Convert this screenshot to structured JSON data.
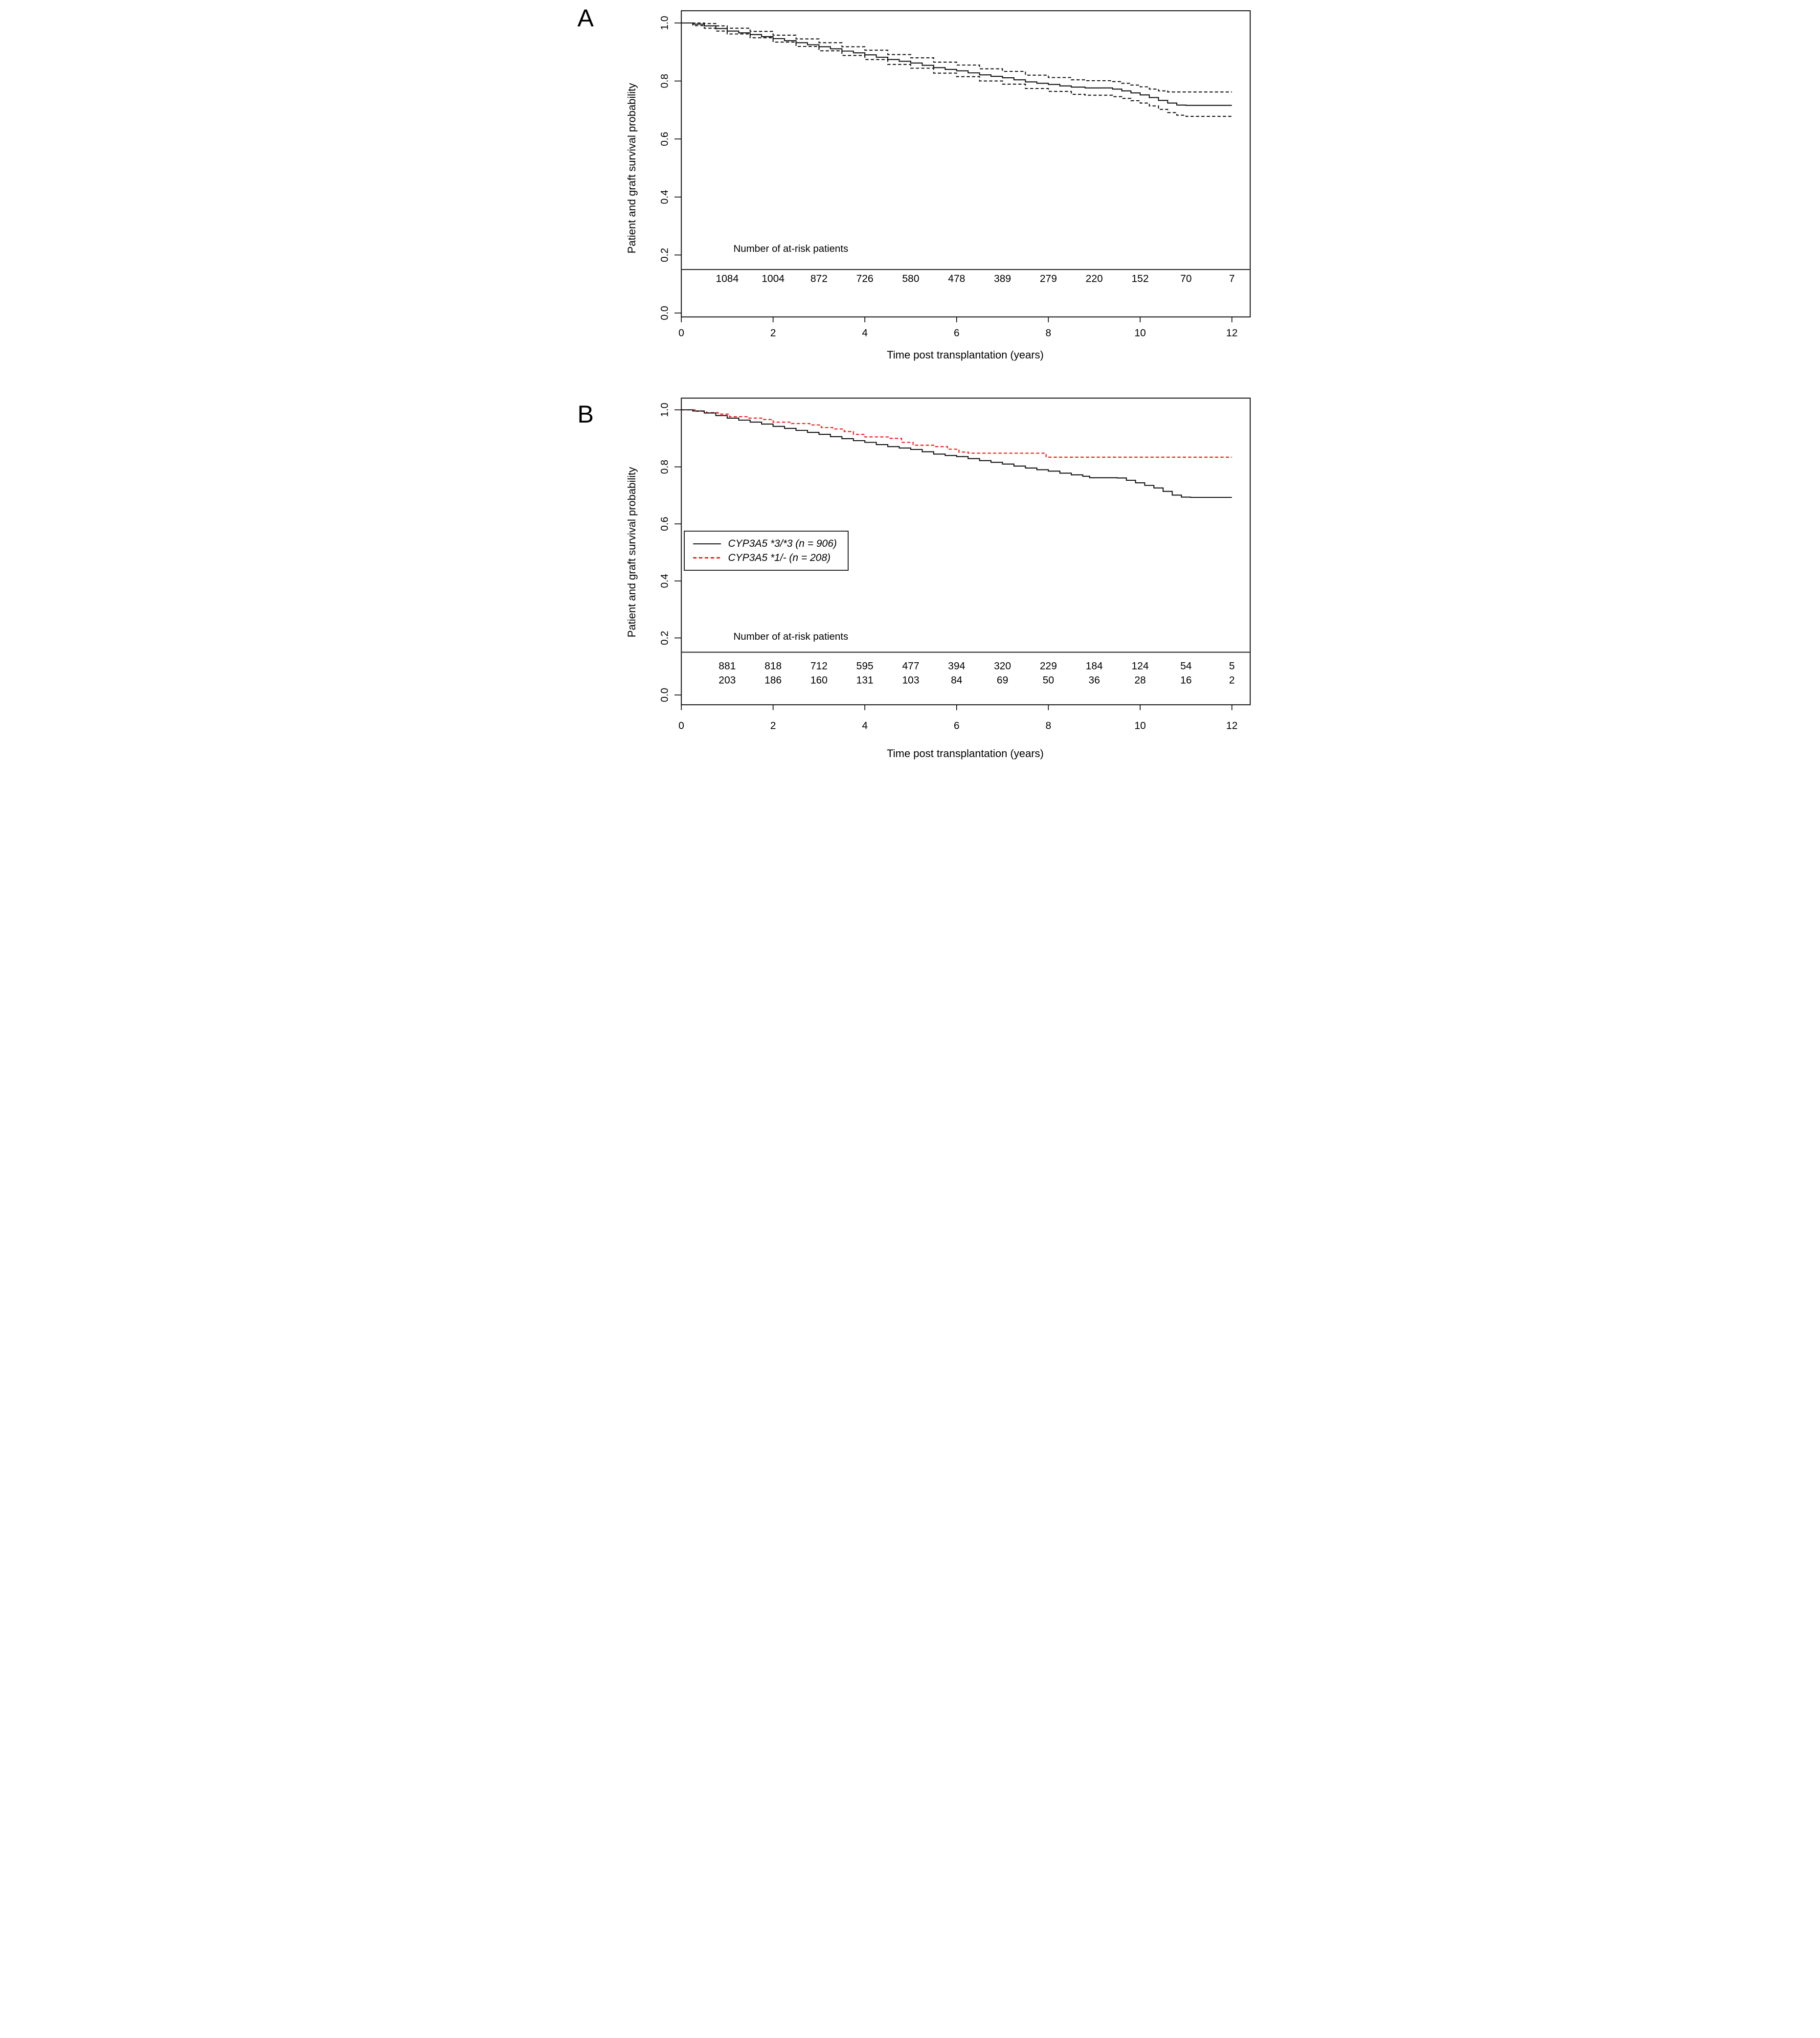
{
  "chart_data": {
    "type": "line",
    "subtype": "kaplan-meier-step",
    "xlabel_shared": "Time post transplantation (years)",
    "panels": [
      {
        "label": "A",
        "xlabel": "Time post transplantation (years)",
        "ylabel": "Patient and graft survival probability",
        "at_risk_title": "Number of at-risk patients",
        "x_ticks": [
          "0",
          "2",
          "4",
          "6",
          "8",
          "10",
          "12"
        ],
        "y_ticks": [
          "1.0",
          "0.8",
          "0.6",
          "0.4",
          "0.2",
          "0.0"
        ],
        "xlim": [
          0,
          12.4
        ],
        "ylim": [
          0,
          1.04
        ],
        "grid": false,
        "series": [
          {
            "name": "overall-survival",
            "line": "solid",
            "color": "#141414",
            "width": 2.1,
            "points": [
              [
                0,
                1.0
              ],
              [
                0.25,
                0.996
              ],
              [
                0.5,
                0.99
              ],
              [
                0.75,
                0.981
              ],
              [
                1,
                0.972
              ],
              [
                1.25,
                0.966
              ],
              [
                1.5,
                0.96
              ],
              [
                1.75,
                0.953
              ],
              [
                2,
                0.946
              ],
              [
                2.25,
                0.939
              ],
              [
                2.5,
                0.932
              ],
              [
                2.75,
                0.925
              ],
              [
                3,
                0.918
              ],
              [
                3.25,
                0.911
              ],
              [
                3.5,
                0.903
              ],
              [
                3.75,
                0.897
              ],
              [
                4,
                0.89
              ],
              [
                4.25,
                0.882
              ],
              [
                4.5,
                0.874
              ],
              [
                4.75,
                0.868
              ],
              [
                5,
                0.862
              ],
              [
                5.25,
                0.854
              ],
              [
                5.5,
                0.846
              ],
              [
                5.75,
                0.84
              ],
              [
                6,
                0.835
              ],
              [
                6.25,
                0.828
              ],
              [
                6.5,
                0.821
              ],
              [
                6.75,
                0.816
              ],
              [
                7,
                0.811
              ],
              [
                7.25,
                0.804
              ],
              [
                7.5,
                0.797
              ],
              [
                7.75,
                0.792
              ],
              [
                8,
                0.788
              ],
              [
                8.25,
                0.783
              ],
              [
                8.5,
                0.779
              ],
              [
                8.8,
                0.776
              ],
              [
                9.4,
                0.772
              ],
              [
                9.6,
                0.766
              ],
              [
                9.8,
                0.759
              ],
              [
                10,
                0.752
              ],
              [
                10.2,
                0.743
              ],
              [
                10.4,
                0.733
              ],
              [
                10.6,
                0.724
              ],
              [
                10.8,
                0.717
              ],
              [
                11,
                0.716
              ],
              [
                12,
                0.716
              ]
            ]
          },
          {
            "name": "upper-95ci",
            "line": "dashed",
            "color": "#141414",
            "width": 2.1,
            "points": [
              [
                0,
                1.0
              ],
              [
                0.25,
                1.0
              ],
              [
                0.5,
                0.998
              ],
              [
                0.75,
                0.99
              ],
              [
                1,
                0.982
              ],
              [
                1.5,
                0.971
              ],
              [
                2,
                0.958
              ],
              [
                2.5,
                0.945
              ],
              [
                3,
                0.932
              ],
              [
                3.5,
                0.918
              ],
              [
                4,
                0.906
              ],
              [
                4.5,
                0.891
              ],
              [
                5,
                0.88
              ],
              [
                5.5,
                0.865
              ],
              [
                6,
                0.855
              ],
              [
                6.5,
                0.842
              ],
              [
                7,
                0.833
              ],
              [
                7.5,
                0.82
              ],
              [
                8,
                0.812
              ],
              [
                8.5,
                0.804
              ],
              [
                8.8,
                0.801
              ],
              [
                9.4,
                0.798
              ],
              [
                9.6,
                0.792
              ],
              [
                9.8,
                0.786
              ],
              [
                10,
                0.78
              ],
              [
                10.2,
                0.772
              ],
              [
                10.4,
                0.766
              ],
              [
                10.6,
                0.762
              ],
              [
                12,
                0.762
              ]
            ]
          },
          {
            "name": "lower-95ci",
            "line": "dashed",
            "color": "#141414",
            "width": 2.1,
            "points": [
              [
                0,
                1.0
              ],
              [
                0.25,
                0.991
              ],
              [
                0.5,
                0.982
              ],
              [
                0.75,
                0.972
              ],
              [
                1,
                0.962
              ],
              [
                1.5,
                0.949
              ],
              [
                2,
                0.934
              ],
              [
                2.5,
                0.919
              ],
              [
                3,
                0.904
              ],
              [
                3.5,
                0.888
              ],
              [
                4,
                0.874
              ],
              [
                4.5,
                0.857
              ],
              [
                5,
                0.844
              ],
              [
                5.5,
                0.827
              ],
              [
                6,
                0.815
              ],
              [
                6.5,
                0.8
              ],
              [
                7,
                0.789
              ],
              [
                7.5,
                0.774
              ],
              [
                8,
                0.764
              ],
              [
                8.5,
                0.754
              ],
              [
                8.8,
                0.751
              ],
              [
                9.4,
                0.746
              ],
              [
                9.6,
                0.74
              ],
              [
                9.8,
                0.732
              ],
              [
                10,
                0.724
              ],
              [
                10.2,
                0.714
              ],
              [
                10.4,
                0.702
              ],
              [
                10.6,
                0.691
              ],
              [
                10.8,
                0.682
              ],
              [
                11,
                0.678
              ],
              [
                12,
                0.678
              ]
            ]
          }
        ],
        "at_risk_rows": [
          {
            "name": "all-patients",
            "color": "#141414",
            "times": [
              1,
              2,
              3,
              4,
              5,
              6,
              7,
              8,
              9,
              10,
              11,
              12
            ],
            "values": [
              "1084",
              "1004",
              "872",
              "726",
              "580",
              "478",
              "389",
              "279",
              "220",
              "152",
              "70",
              "7"
            ]
          }
        ]
      },
      {
        "label": "B",
        "xlabel": "Time post transplantation (years)",
        "ylabel": "Patient and graft survival probability",
        "at_risk_title": "Number of at-risk patients",
        "x_ticks": [
          "0",
          "2",
          "4",
          "6",
          "8",
          "10",
          "12"
        ],
        "y_ticks": [
          "1.0",
          "0.8",
          "0.6",
          "0.4",
          "0.2",
          "0.0"
        ],
        "xlim": [
          0,
          12.4
        ],
        "ylim": [
          0,
          1.04
        ],
        "grid": false,
        "legend": {
          "position": "left-middle",
          "entries": [
            {
              "label": "CYP3A5 *3/*3 (n = 906)",
              "color": "#141414",
              "line": "solid"
            },
            {
              "label": "CYP3A5 *1/- (n = 208)",
              "color": "#fa2020",
              "line": "dashed"
            }
          ]
        },
        "series": [
          {
            "name": "cyp3a5-3-3",
            "line": "solid",
            "color": "#141414",
            "width": 2.1,
            "points": [
              [
                0,
                1.0
              ],
              [
                0.25,
                0.996
              ],
              [
                0.5,
                0.989
              ],
              [
                0.75,
                0.98
              ],
              [
                1,
                0.971
              ],
              [
                1.25,
                0.964
              ],
              [
                1.5,
                0.957
              ],
              [
                1.75,
                0.95
              ],
              [
                2,
                0.942
              ],
              [
                2.25,
                0.935
              ],
              [
                2.5,
                0.928
              ],
              [
                2.75,
                0.921
              ],
              [
                3,
                0.914
              ],
              [
                3.25,
                0.906
              ],
              [
                3.5,
                0.899
              ],
              [
                3.75,
                0.892
              ],
              [
                4,
                0.886
              ],
              [
                4.25,
                0.878
              ],
              [
                4.5,
                0.871
              ],
              [
                4.75,
                0.866
              ],
              [
                5,
                0.861
              ],
              [
                5.25,
                0.853
              ],
              [
                5.5,
                0.845
              ],
              [
                5.75,
                0.84
              ],
              [
                6,
                0.836
              ],
              [
                6.25,
                0.829
              ],
              [
                6.5,
                0.822
              ],
              [
                6.75,
                0.816
              ],
              [
                7,
                0.81
              ],
              [
                7.25,
                0.803
              ],
              [
                7.5,
                0.796
              ],
              [
                7.75,
                0.79
              ],
              [
                8,
                0.785
              ],
              [
                8.25,
                0.778
              ],
              [
                8.5,
                0.772
              ],
              [
                8.75,
                0.767
              ],
              [
                8.9,
                0.762
              ],
              [
                9.5,
                0.761
              ],
              [
                9.7,
                0.753
              ],
              [
                9.9,
                0.744
              ],
              [
                10.1,
                0.735
              ],
              [
                10.3,
                0.726
              ],
              [
                10.5,
                0.714
              ],
              [
                10.7,
                0.701
              ],
              [
                10.9,
                0.694
              ],
              [
                11.1,
                0.693
              ],
              [
                12,
                0.693
              ]
            ]
          },
          {
            "name": "cyp3a5-1",
            "line": "dashed",
            "color": "#fa2020",
            "width": 2.3,
            "points": [
              [
                0,
                1.0
              ],
              [
                0.3,
                0.995
              ],
              [
                0.55,
                0.99
              ],
              [
                0.8,
                0.985
              ],
              [
                1.05,
                0.976
              ],
              [
                1.45,
                0.971
              ],
              [
                1.75,
                0.966
              ],
              [
                2,
                0.957
              ],
              [
                2.4,
                0.952
              ],
              [
                2.8,
                0.947
              ],
              [
                3.05,
                0.938
              ],
              [
                3.3,
                0.933
              ],
              [
                3.55,
                0.924
              ],
              [
                3.75,
                0.914
              ],
              [
                4,
                0.905
              ],
              [
                4.55,
                0.9
              ],
              [
                4.8,
                0.886
              ],
              [
                5.05,
                0.876
              ],
              [
                5.5,
                0.871
              ],
              [
                5.8,
                0.862
              ],
              [
                6.05,
                0.852
              ],
              [
                6.25,
                0.848
              ],
              [
                7.95,
                0.834
              ],
              [
                12,
                0.834
              ]
            ]
          }
        ],
        "at_risk_rows": [
          {
            "name": "cyp3a5-3-3",
            "color": "#141414",
            "times": [
              1,
              2,
              3,
              4,
              5,
              6,
              7,
              8,
              9,
              10,
              11,
              12
            ],
            "values": [
              "881",
              "818",
              "712",
              "595",
              "477",
              "394",
              "320",
              "229",
              "184",
              "124",
              "54",
              "5"
            ]
          },
          {
            "name": "cyp3a5-1",
            "color": "#fa2020",
            "times": [
              1,
              2,
              3,
              4,
              5,
              6,
              7,
              8,
              9,
              10,
              11,
              12
            ],
            "values": [
              "203",
              "186",
              "160",
              "131",
              "103",
              "84",
              "69",
              "50",
              "36",
              "28",
              "16",
              "2"
            ]
          }
        ]
      }
    ],
    "colors": {
      "black": "#141414",
      "red": "#fa2020",
      "frame": "#2b2b2b"
    }
  }
}
